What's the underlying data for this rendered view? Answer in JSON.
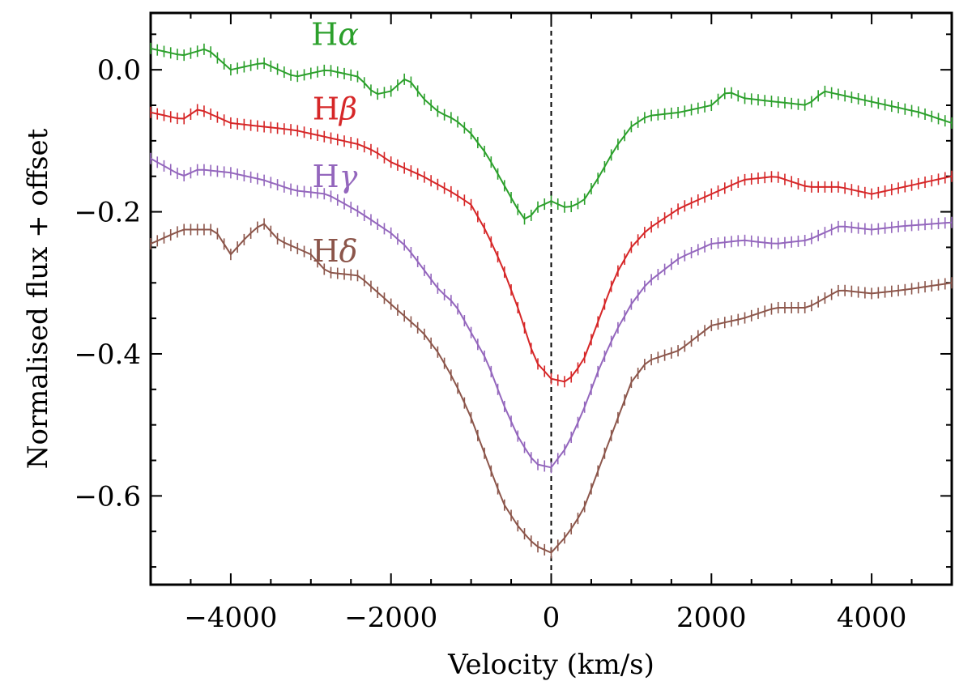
{
  "chart_data": {
    "type": "line",
    "title": "",
    "xlabel": "Velocity (km/s)",
    "ylabel": "Normalised flux + offset",
    "xlim": [
      -5000,
      5000
    ],
    "ylim": [
      -0.725,
      0.08
    ],
    "xticks": [
      -4000,
      -2000,
      0,
      2000,
      4000
    ],
    "xtick_labels": [
      "−4000",
      "−2000",
      "0",
      "2000",
      "4000"
    ],
    "yticks": [
      0.0,
      -0.2,
      -0.4,
      -0.6
    ],
    "ytick_labels": [
      "0.0",
      "−0.2",
      "−0.4",
      "−0.6"
    ],
    "grid": false,
    "reference_line": {
      "x": 0,
      "style": "dashed"
    },
    "series": [
      {
        "name": "Hα",
        "label_main": "H",
        "label_greek": "α",
        "color": "#2ca02c",
        "error_bar": 0.008,
        "label_at": {
          "x": -2700,
          "y": 0.035
        },
        "points": [
          [
            -5000,
            0.03
          ],
          [
            -4600,
            0.02
          ],
          [
            -4300,
            0.03
          ],
          [
            -4000,
            0.0
          ],
          [
            -3600,
            0.01
          ],
          [
            -3200,
            -0.01
          ],
          [
            -2800,
            0.0
          ],
          [
            -2400,
            -0.01
          ],
          [
            -2200,
            -0.035
          ],
          [
            -2000,
            -0.03
          ],
          [
            -1800,
            -0.01
          ],
          [
            -1600,
            -0.04
          ],
          [
            -1400,
            -0.06
          ],
          [
            -1200,
            -0.07
          ],
          [
            -1000,
            -0.09
          ],
          [
            -800,
            -0.12
          ],
          [
            -600,
            -0.16
          ],
          [
            -400,
            -0.2
          ],
          [
            -300,
            -0.215
          ],
          [
            -200,
            -0.195
          ],
          [
            0,
            -0.185
          ],
          [
            200,
            -0.195
          ],
          [
            400,
            -0.185
          ],
          [
            600,
            -0.15
          ],
          [
            800,
            -0.11
          ],
          [
            1000,
            -0.08
          ],
          [
            1200,
            -0.065
          ],
          [
            1600,
            -0.06
          ],
          [
            2000,
            -0.05
          ],
          [
            2200,
            -0.03
          ],
          [
            2400,
            -0.04
          ],
          [
            2800,
            -0.045
          ],
          [
            3200,
            -0.05
          ],
          [
            3400,
            -0.03
          ],
          [
            3800,
            -0.04
          ],
          [
            4200,
            -0.05
          ],
          [
            4600,
            -0.06
          ],
          [
            5000,
            -0.075
          ]
        ]
      },
      {
        "name": "Hβ",
        "label_main": "H",
        "label_greek": "β",
        "color": "#d62728",
        "error_bar": 0.008,
        "label_at": {
          "x": -2700,
          "y": -0.07
        },
        "points": [
          [
            -5000,
            -0.06
          ],
          [
            -4600,
            -0.07
          ],
          [
            -4400,
            -0.055
          ],
          [
            -4000,
            -0.075
          ],
          [
            -3600,
            -0.08
          ],
          [
            -3200,
            -0.085
          ],
          [
            -2800,
            -0.095
          ],
          [
            -2400,
            -0.105
          ],
          [
            -2200,
            -0.115
          ],
          [
            -2000,
            -0.13
          ],
          [
            -1600,
            -0.15
          ],
          [
            -1200,
            -0.175
          ],
          [
            -1000,
            -0.19
          ],
          [
            -800,
            -0.23
          ],
          [
            -600,
            -0.28
          ],
          [
            -400,
            -0.34
          ],
          [
            -200,
            -0.41
          ],
          [
            0,
            -0.435
          ],
          [
            200,
            -0.44
          ],
          [
            400,
            -0.41
          ],
          [
            600,
            -0.35
          ],
          [
            800,
            -0.29
          ],
          [
            1000,
            -0.25
          ],
          [
            1200,
            -0.225
          ],
          [
            1600,
            -0.195
          ],
          [
            2000,
            -0.175
          ],
          [
            2400,
            -0.155
          ],
          [
            2800,
            -0.15
          ],
          [
            3200,
            -0.165
          ],
          [
            3600,
            -0.165
          ],
          [
            4000,
            -0.175
          ],
          [
            4400,
            -0.165
          ],
          [
            4800,
            -0.155
          ],
          [
            5000,
            -0.15
          ]
        ]
      },
      {
        "name": "Hγ",
        "label_main": "H",
        "label_greek": "γ",
        "color": "#9467bd",
        "error_bar": 0.008,
        "label_at": {
          "x": -2700,
          "y": -0.165
        },
        "points": [
          [
            -5000,
            -0.125
          ],
          [
            -4600,
            -0.15
          ],
          [
            -4400,
            -0.14
          ],
          [
            -4000,
            -0.145
          ],
          [
            -3600,
            -0.155
          ],
          [
            -3200,
            -0.17
          ],
          [
            -2800,
            -0.175
          ],
          [
            -2400,
            -0.2
          ],
          [
            -2200,
            -0.215
          ],
          [
            -2000,
            -0.23
          ],
          [
            -1800,
            -0.25
          ],
          [
            -1600,
            -0.28
          ],
          [
            -1400,
            -0.31
          ],
          [
            -1200,
            -0.33
          ],
          [
            -1000,
            -0.37
          ],
          [
            -800,
            -0.41
          ],
          [
            -600,
            -0.47
          ],
          [
            -400,
            -0.52
          ],
          [
            -200,
            -0.555
          ],
          [
            0,
            -0.56
          ],
          [
            200,
            -0.53
          ],
          [
            400,
            -0.48
          ],
          [
            600,
            -0.42
          ],
          [
            800,
            -0.37
          ],
          [
            1000,
            -0.33
          ],
          [
            1200,
            -0.3
          ],
          [
            1600,
            -0.265
          ],
          [
            2000,
            -0.245
          ],
          [
            2400,
            -0.24
          ],
          [
            2800,
            -0.245
          ],
          [
            3200,
            -0.24
          ],
          [
            3600,
            -0.22
          ],
          [
            4000,
            -0.225
          ],
          [
            4400,
            -0.22
          ],
          [
            5000,
            -0.215
          ]
        ]
      },
      {
        "name": "Hδ",
        "label_main": "H",
        "label_greek": "δ",
        "color": "#8c564b",
        "error_bar": 0.008,
        "label_at": {
          "x": -2700,
          "y": -0.27
        },
        "points": [
          [
            -5000,
            -0.245
          ],
          [
            -4600,
            -0.225
          ],
          [
            -4200,
            -0.225
          ],
          [
            -4000,
            -0.26
          ],
          [
            -3800,
            -0.235
          ],
          [
            -3600,
            -0.215
          ],
          [
            -3400,
            -0.24
          ],
          [
            -3000,
            -0.26
          ],
          [
            -2800,
            -0.285
          ],
          [
            -2400,
            -0.29
          ],
          [
            -2200,
            -0.31
          ],
          [
            -2000,
            -0.33
          ],
          [
            -1800,
            -0.35
          ],
          [
            -1600,
            -0.37
          ],
          [
            -1400,
            -0.4
          ],
          [
            -1200,
            -0.44
          ],
          [
            -1000,
            -0.49
          ],
          [
            -800,
            -0.55
          ],
          [
            -600,
            -0.61
          ],
          [
            -400,
            -0.645
          ],
          [
            -200,
            -0.67
          ],
          [
            0,
            -0.68
          ],
          [
            200,
            -0.655
          ],
          [
            400,
            -0.62
          ],
          [
            600,
            -0.56
          ],
          [
            800,
            -0.5
          ],
          [
            1000,
            -0.44
          ],
          [
            1200,
            -0.41
          ],
          [
            1600,
            -0.395
          ],
          [
            2000,
            -0.36
          ],
          [
            2400,
            -0.35
          ],
          [
            2800,
            -0.335
          ],
          [
            3200,
            -0.335
          ],
          [
            3600,
            -0.31
          ],
          [
            4000,
            -0.315
          ],
          [
            4400,
            -0.31
          ],
          [
            5000,
            -0.3
          ]
        ]
      }
    ]
  }
}
